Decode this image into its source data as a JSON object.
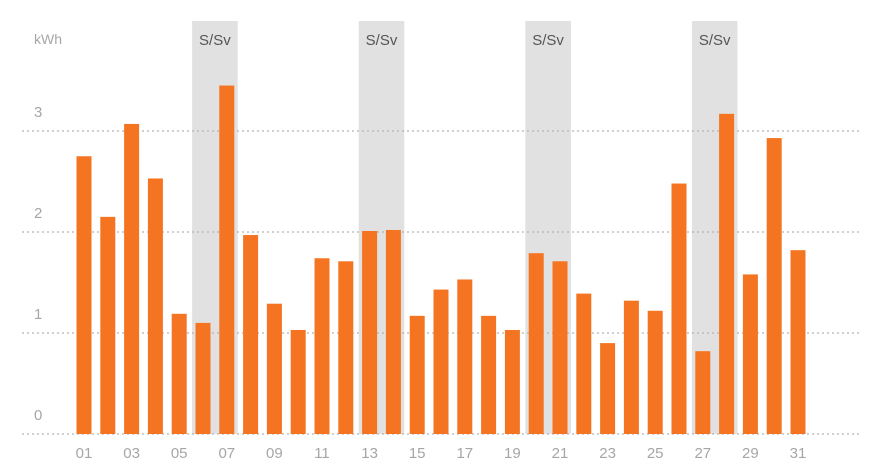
{
  "chart_data": {
    "type": "bar",
    "ylabel": "kWh",
    "ylim": [
      0,
      3.5
    ],
    "yticks": [
      "0",
      "1",
      "2",
      "3"
    ],
    "grid": true,
    "categories": [
      "01",
      "02",
      "03",
      "04",
      "05",
      "06",
      "07",
      "08",
      "09",
      "10",
      "11",
      "12",
      "13",
      "14",
      "15",
      "16",
      "17",
      "18",
      "19",
      "20",
      "21",
      "22",
      "23",
      "24",
      "25",
      "26",
      "27",
      "28",
      "29",
      "30",
      "31"
    ],
    "xtick_labels": [
      "01",
      "03",
      "05",
      "07",
      "09",
      "11",
      "13",
      "15",
      "17",
      "19",
      "21",
      "23",
      "25",
      "27",
      "29",
      "31"
    ],
    "values": [
      2.75,
      2.15,
      3.07,
      2.53,
      1.19,
      1.1,
      3.45,
      1.97,
      1.29,
      1.03,
      1.74,
      1.71,
      2.01,
      2.02,
      1.17,
      1.43,
      1.53,
      1.17,
      1.03,
      1.79,
      1.71,
      1.39,
      0.9,
      1.32,
      1.22,
      2.48,
      0.82,
      3.17,
      1.58,
      2.93,
      1.82
    ],
    "weekend_label": "S/Sv",
    "weekend_days": [
      [
        "06",
        "07"
      ],
      [
        "13",
        "14"
      ],
      [
        "20",
        "21"
      ],
      [
        "27",
        "28"
      ]
    ],
    "colors": {
      "bar": "#f47422",
      "weekend_band": "#e1e1e1",
      "grid": "#b5b5b5",
      "axis_text": "#a6a6a6",
      "weekend_text": "#555555"
    }
  }
}
